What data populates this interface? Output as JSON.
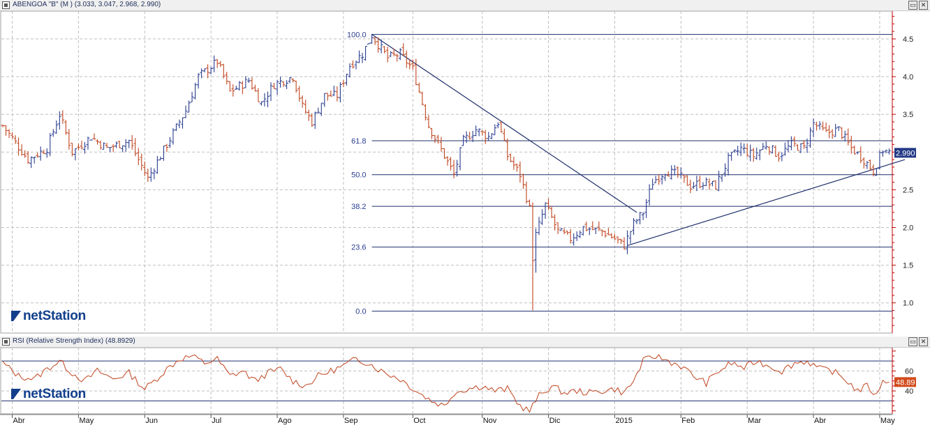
{
  "window": {
    "price_title": "ABENGOA \"B\" (M ) (3.033, 3.047, 2.968, 2.990)",
    "rsi_title": "RSI (Relative Strength Index) (48.8929)",
    "restore_glyph": "▭",
    "close_glyph": "✕"
  },
  "branding": {
    "logo_text": "netStation"
  },
  "colors": {
    "up": "#2a3d8f",
    "down": "#c0441e",
    "rsi_line": "#c0441e",
    "fib_line": "#1f2f6b",
    "trend_line": "#1f2f6b",
    "grid": "#bfbfbf",
    "axis_red": "#c00000",
    "last_price_badge": "#243a86",
    "rsi_badge": "#d24a1c"
  },
  "chart_data": [
    {
      "type": "ohlc",
      "title": "ABENGOA \"B\" (M )",
      "last_ohlc": {
        "open": 3.033,
        "high": 3.047,
        "low": 2.968,
        "close": 2.99
      },
      "last_price_label": "2.990",
      "x_tick_labels": [
        "Abr",
        "May",
        "Jun",
        "Jul",
        "Ago",
        "Sep",
        "Oct",
        "Nov",
        "Dic",
        "2015",
        "Feb",
        "Mar",
        "Abr",
        "May"
      ],
      "x_tick_positions": [
        3.0,
        24.0,
        45.0,
        66.0,
        87.0,
        108.0,
        130.0,
        152.0,
        173.0,
        194.0,
        215.0,
        236.0,
        257.0,
        278.0
      ],
      "ylim": [
        0.6,
        4.85
      ],
      "y_ticks": [
        "1.0",
        "1.5",
        "2.0",
        "2.5",
        "3.0",
        "3.5",
        "4.0",
        "4.5"
      ],
      "y_tick_values": [
        1.0,
        1.5,
        2.0,
        2.5,
        3.0,
        3.5,
        4.0,
        4.5
      ],
      "anchors": [
        [
          0,
          3.35
        ],
        [
          8,
          2.9
        ],
        [
          14,
          3.05
        ],
        [
          18,
          3.5
        ],
        [
          22,
          3.0
        ],
        [
          28,
          3.2
        ],
        [
          33,
          3.05
        ],
        [
          40,
          3.15
        ],
        [
          46,
          2.65
        ],
        [
          52,
          3.1
        ],
        [
          58,
          3.55
        ],
        [
          62,
          4.0
        ],
        [
          68,
          4.2
        ],
        [
          72,
          3.8
        ],
        [
          78,
          3.95
        ],
        [
          82,
          3.65
        ],
        [
          86,
          3.9
        ],
        [
          92,
          4.0
        ],
        [
          95,
          3.6
        ],
        [
          98,
          3.4
        ],
        [
          102,
          3.75
        ],
        [
          106,
          3.75
        ],
        [
          110,
          4.15
        ],
        [
          114,
          4.3
        ],
        [
          117,
          4.55
        ],
        [
          122,
          4.25
        ],
        [
          126,
          4.3
        ],
        [
          130,
          4.1
        ],
        [
          135,
          3.35
        ],
        [
          140,
          2.95
        ],
        [
          143,
          2.7
        ],
        [
          146,
          3.15
        ],
        [
          150,
          3.3
        ],
        [
          154,
          3.2
        ],
        [
          157,
          3.4
        ],
        [
          160,
          2.95
        ],
        [
          164,
          2.7
        ],
        [
          167,
          2.25
        ],
        [
          168,
          1.6
        ],
        [
          169,
          1.9
        ],
        [
          172,
          2.3
        ],
        [
          176,
          1.95
        ],
        [
          180,
          1.85
        ],
        [
          184,
          2.0
        ],
        [
          190,
          1.95
        ],
        [
          194,
          1.85
        ],
        [
          197,
          1.76
        ],
        [
          200,
          2.05
        ],
        [
          203,
          2.2
        ],
        [
          206,
          2.6
        ],
        [
          210,
          2.75
        ],
        [
          214,
          2.7
        ],
        [
          218,
          2.55
        ],
        [
          222,
          2.6
        ],
        [
          226,
          2.55
        ],
        [
          230,
          2.9
        ],
        [
          234,
          3.05
        ],
        [
          238,
          2.95
        ],
        [
          242,
          3.1
        ],
        [
          246,
          2.95
        ],
        [
          250,
          3.1
        ],
        [
          254,
          3.05
        ],
        [
          257,
          3.38
        ],
        [
          261,
          3.25
        ],
        [
          265,
          3.3
        ],
        [
          269,
          3.05
        ],
        [
          273,
          2.9
        ],
        [
          276,
          2.75
        ],
        [
          279,
          3.03
        ],
        [
          281,
          2.99
        ]
      ],
      "extreme_lows": [
        [
          168,
          0.9
        ],
        [
          169,
          1.4
        ]
      ],
      "fibonacci": {
        "levels": [
          {
            "label": "100.0",
            "value": 4.56
          },
          {
            "label": "61.8",
            "value": 3.15
          },
          {
            "label": "50.0",
            "value": 2.7
          },
          {
            "label": "38.2",
            "value": 2.28
          },
          {
            "label": "23.6",
            "value": 1.74
          },
          {
            "label": "0.0",
            "value": 0.89
          }
        ],
        "x_start": 117
      },
      "trendlines": [
        {
          "from": [
            117,
            4.56
          ],
          "to": [
            201,
            2.2
          ]
        },
        {
          "from": [
            198,
            1.76
          ],
          "to": [
            286,
            2.9
          ]
        }
      ]
    },
    {
      "type": "line",
      "title": "RSI (Relative Strength Index)",
      "last_value": 48.8929,
      "last_value_label": "48.89",
      "ylim": [
        17,
        82
      ],
      "y_ticks": [
        "40",
        "60"
      ],
      "y_tick_values": [
        40,
        60
      ],
      "reference_lines": [
        30,
        70
      ],
      "anchors": [
        [
          0,
          68
        ],
        [
          5,
          55
        ],
        [
          10,
          52
        ],
        [
          14,
          62
        ],
        [
          18,
          70
        ],
        [
          22,
          58
        ],
        [
          26,
          50
        ],
        [
          30,
          60
        ],
        [
          35,
          52
        ],
        [
          40,
          58
        ],
        [
          45,
          42
        ],
        [
          48,
          50
        ],
        [
          52,
          62
        ],
        [
          56,
          72
        ],
        [
          60,
          75
        ],
        [
          64,
          68
        ],
        [
          68,
          72
        ],
        [
          72,
          55
        ],
        [
          76,
          60
        ],
        [
          80,
          50
        ],
        [
          84,
          58
        ],
        [
          88,
          62
        ],
        [
          92,
          50
        ],
        [
          96,
          45
        ],
        [
          100,
          55
        ],
        [
          104,
          60
        ],
        [
          108,
          65
        ],
        [
          112,
          72
        ],
        [
          116,
          68
        ],
        [
          120,
          60
        ],
        [
          126,
          52
        ],
        [
          132,
          38
        ],
        [
          136,
          30
        ],
        [
          140,
          25
        ],
        [
          143,
          38
        ],
        [
          147,
          42
        ],
        [
          152,
          45
        ],
        [
          156,
          40
        ],
        [
          160,
          42
        ],
        [
          164,
          25
        ],
        [
          167,
          20
        ],
        [
          170,
          35
        ],
        [
          174,
          45
        ],
        [
          178,
          38
        ],
        [
          182,
          40
        ],
        [
          186,
          38
        ],
        [
          190,
          40
        ],
        [
          194,
          42
        ],
        [
          197,
          38
        ],
        [
          200,
          50
        ],
        [
          203,
          70
        ],
        [
          207,
          75
        ],
        [
          211,
          70
        ],
        [
          215,
          65
        ],
        [
          219,
          55
        ],
        [
          223,
          48
        ],
        [
          227,
          60
        ],
        [
          231,
          68
        ],
        [
          235,
          63
        ],
        [
          239,
          70
        ],
        [
          243,
          65
        ],
        [
          247,
          60
        ],
        [
          251,
          68
        ],
        [
          255,
          70
        ],
        [
          259,
          62
        ],
        [
          263,
          60
        ],
        [
          267,
          52
        ],
        [
          271,
          40
        ],
        [
          274,
          45
        ],
        [
          277,
          35
        ],
        [
          279,
          52
        ],
        [
          281,
          49
        ]
      ]
    }
  ]
}
